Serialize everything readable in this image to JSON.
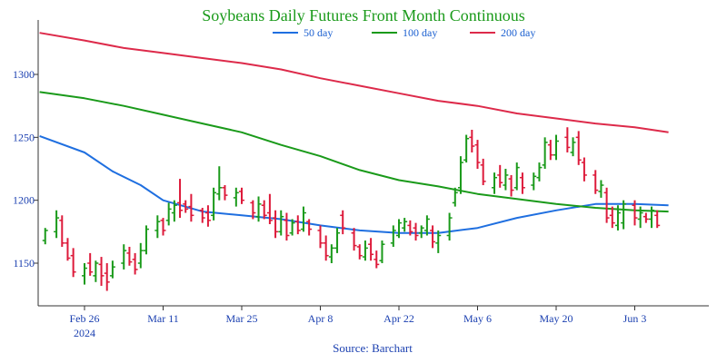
{
  "chart_data": {
    "type": "ohlc-bar",
    "title": "Soybeans Daily Futures Front Month Continuous",
    "source": "Source: Barchart",
    "year_label": "2024",
    "ylim": [
      1120,
      1345
    ],
    "yticks": [
      1150,
      1200,
      1250,
      1300
    ],
    "xticks": [
      {
        "label": "Feb 26",
        "day": 0
      },
      {
        "label": "Mar 11",
        "day": 14
      },
      {
        "label": "Mar 25",
        "day": 28
      },
      {
        "label": "Apr 8",
        "day": 42
      },
      {
        "label": "Apr 22",
        "day": 56
      },
      {
        "label": "May 6",
        "day": 70
      },
      {
        "label": "May 20",
        "day": 84
      },
      {
        "label": "Jun 3",
        "day": 98
      }
    ],
    "xlim": [
      -8,
      105
    ],
    "colors": {
      "up": "#1a9a1a",
      "down": "#dd1a3a",
      "ma50": "#1f6fe0",
      "ma100": "#1a9a1a",
      "ma200": "#dd2a4a"
    },
    "legend": [
      {
        "name": "50 day",
        "color": "#1f6fe0"
      },
      {
        "name": "100 day",
        "color": "#1a9a1a"
      },
      {
        "name": "200 day",
        "color": "#dd2a4a"
      }
    ],
    "bars": [
      {
        "day": -7,
        "high": 1178,
        "low": 1165,
        "open": 1168,
        "close": 1176,
        "dir": "up"
      },
      {
        "day": -5,
        "high": 1192,
        "low": 1170,
        "open": 1175,
        "close": 1186,
        "dir": "up"
      },
      {
        "day": -4,
        "high": 1188,
        "low": 1163,
        "open": 1184,
        "close": 1166,
        "dir": "down"
      },
      {
        "day": -3,
        "high": 1170,
        "low": 1152,
        "open": 1166,
        "close": 1154,
        "dir": "down"
      },
      {
        "day": -2,
        "high": 1162,
        "low": 1139,
        "open": 1156,
        "close": 1143,
        "dir": "down"
      },
      {
        "day": 0,
        "high": 1150,
        "low": 1133,
        "open": 1140,
        "close": 1146,
        "dir": "up"
      },
      {
        "day": 1,
        "high": 1158,
        "low": 1140,
        "open": 1150,
        "close": 1143,
        "dir": "down"
      },
      {
        "day": 2,
        "high": 1152,
        "low": 1135,
        "open": 1140,
        "close": 1150,
        "dir": "up"
      },
      {
        "day": 3,
        "high": 1155,
        "low": 1132,
        "open": 1149,
        "close": 1140,
        "dir": "down"
      },
      {
        "day": 4,
        "high": 1150,
        "low": 1128,
        "open": 1142,
        "close": 1135,
        "dir": "down"
      },
      {
        "day": 5,
        "high": 1152,
        "low": 1138,
        "open": 1140,
        "close": 1147,
        "dir": "up"
      },
      {
        "day": 7,
        "high": 1165,
        "low": 1145,
        "open": 1150,
        "close": 1160,
        "dir": "up"
      },
      {
        "day": 8,
        "high": 1163,
        "low": 1148,
        "open": 1158,
        "close": 1151,
        "dir": "down"
      },
      {
        "day": 9,
        "high": 1158,
        "low": 1141,
        "open": 1153,
        "close": 1145,
        "dir": "down"
      },
      {
        "day": 10,
        "high": 1166,
        "low": 1146,
        "open": 1150,
        "close": 1160,
        "dir": "up"
      },
      {
        "day": 11,
        "high": 1180,
        "low": 1157,
        "open": 1160,
        "close": 1177,
        "dir": "up"
      },
      {
        "day": 13,
        "high": 1188,
        "low": 1170,
        "open": 1176,
        "close": 1183,
        "dir": "up"
      },
      {
        "day": 14,
        "high": 1186,
        "low": 1172,
        "open": 1184,
        "close": 1176,
        "dir": "down"
      },
      {
        "day": 15,
        "high": 1198,
        "low": 1180,
        "open": 1184,
        "close": 1193,
        "dir": "up"
      },
      {
        "day": 16,
        "high": 1200,
        "low": 1183,
        "open": 1190,
        "close": 1196,
        "dir": "up"
      },
      {
        "day": 17,
        "high": 1217,
        "low": 1186,
        "open": 1198,
        "close": 1192,
        "dir": "down"
      },
      {
        "day": 18,
        "high": 1200,
        "low": 1190,
        "open": 1197,
        "close": 1193,
        "dir": "down"
      },
      {
        "day": 19,
        "high": 1205,
        "low": 1183,
        "open": 1195,
        "close": 1188,
        "dir": "down"
      },
      {
        "day": 21,
        "high": 1194,
        "low": 1182,
        "open": 1192,
        "close": 1186,
        "dir": "down"
      },
      {
        "day": 22,
        "high": 1196,
        "low": 1179,
        "open": 1190,
        "close": 1184,
        "dir": "down"
      },
      {
        "day": 23,
        "high": 1210,
        "low": 1184,
        "open": 1188,
        "close": 1206,
        "dir": "up"
      },
      {
        "day": 24,
        "high": 1227,
        "low": 1200,
        "open": 1205,
        "close": 1210,
        "dir": "up"
      },
      {
        "day": 25,
        "high": 1212,
        "low": 1200,
        "open": 1210,
        "close": 1204,
        "dir": "down"
      },
      {
        "day": 27,
        "high": 1210,
        "low": 1195,
        "open": 1202,
        "close": 1206,
        "dir": "up"
      },
      {
        "day": 28,
        "high": 1210,
        "low": 1197,
        "open": 1207,
        "close": 1200,
        "dir": "down"
      },
      {
        "day": 30,
        "high": 1200,
        "low": 1185,
        "open": 1198,
        "close": 1190,
        "dir": "down"
      },
      {
        "day": 31,
        "high": 1203,
        "low": 1183,
        "open": 1187,
        "close": 1197,
        "dir": "up"
      },
      {
        "day": 32,
        "high": 1200,
        "low": 1185,
        "open": 1196,
        "close": 1188,
        "dir": "down"
      },
      {
        "day": 33,
        "high": 1205,
        "low": 1181,
        "open": 1190,
        "close": 1184,
        "dir": "down"
      },
      {
        "day": 34,
        "high": 1192,
        "low": 1170,
        "open": 1186,
        "close": 1175,
        "dir": "down"
      },
      {
        "day": 35,
        "high": 1192,
        "low": 1172,
        "open": 1175,
        "close": 1187,
        "dir": "up"
      },
      {
        "day": 36,
        "high": 1190,
        "low": 1168,
        "open": 1184,
        "close": 1172,
        "dir": "down"
      },
      {
        "day": 37,
        "high": 1185,
        "low": 1172,
        "open": 1174,
        "close": 1182,
        "dir": "up"
      },
      {
        "day": 38,
        "high": 1188,
        "low": 1173,
        "open": 1183,
        "close": 1176,
        "dir": "down"
      },
      {
        "day": 39,
        "high": 1195,
        "low": 1175,
        "open": 1177,
        "close": 1190,
        "dir": "up"
      },
      {
        "day": 40,
        "high": 1185,
        "low": 1172,
        "open": 1183,
        "close": 1177,
        "dir": "down"
      },
      {
        "day": 42,
        "high": 1180,
        "low": 1162,
        "open": 1176,
        "close": 1166,
        "dir": "down"
      },
      {
        "day": 43,
        "high": 1172,
        "low": 1152,
        "open": 1166,
        "close": 1156,
        "dir": "down"
      },
      {
        "day": 44,
        "high": 1165,
        "low": 1150,
        "open": 1155,
        "close": 1162,
        "dir": "up"
      },
      {
        "day": 45,
        "high": 1178,
        "low": 1158,
        "open": 1162,
        "close": 1174,
        "dir": "up"
      },
      {
        "day": 46,
        "high": 1192,
        "low": 1173,
        "open": 1188,
        "close": 1178,
        "dir": "down"
      },
      {
        "day": 48,
        "high": 1178,
        "low": 1160,
        "open": 1174,
        "close": 1164,
        "dir": "down"
      },
      {
        "day": 49,
        "high": 1165,
        "low": 1153,
        "open": 1163,
        "close": 1156,
        "dir": "down"
      },
      {
        "day": 50,
        "high": 1168,
        "low": 1152,
        "open": 1155,
        "close": 1162,
        "dir": "up"
      },
      {
        "day": 51,
        "high": 1170,
        "low": 1152,
        "open": 1165,
        "close": 1157,
        "dir": "down"
      },
      {
        "day": 52,
        "high": 1160,
        "low": 1146,
        "open": 1153,
        "close": 1149,
        "dir": "down"
      },
      {
        "day": 53,
        "high": 1168,
        "low": 1150,
        "open": 1152,
        "close": 1165,
        "dir": "up"
      },
      {
        "day": 55,
        "high": 1180,
        "low": 1163,
        "open": 1166,
        "close": 1176,
        "dir": "up"
      },
      {
        "day": 56,
        "high": 1185,
        "low": 1170,
        "open": 1172,
        "close": 1182,
        "dir": "up"
      },
      {
        "day": 57,
        "high": 1186,
        "low": 1175,
        "open": 1178,
        "close": 1183,
        "dir": "up"
      },
      {
        "day": 58,
        "high": 1184,
        "low": 1172,
        "open": 1180,
        "close": 1175,
        "dir": "down"
      },
      {
        "day": 59,
        "high": 1182,
        "low": 1168,
        "open": 1178,
        "close": 1172,
        "dir": "down"
      },
      {
        "day": 60,
        "high": 1180,
        "low": 1170,
        "open": 1174,
        "close": 1178,
        "dir": "up"
      },
      {
        "day": 61,
        "high": 1188,
        "low": 1172,
        "open": 1176,
        "close": 1185,
        "dir": "up"
      },
      {
        "day": 62,
        "high": 1180,
        "low": 1162,
        "open": 1176,
        "close": 1167,
        "dir": "down"
      },
      {
        "day": 63,
        "high": 1176,
        "low": 1158,
        "open": 1166,
        "close": 1172,
        "dir": "up"
      },
      {
        "day": 65,
        "high": 1190,
        "low": 1168,
        "open": 1172,
        "close": 1186,
        "dir": "up"
      },
      {
        "day": 66,
        "high": 1210,
        "low": 1195,
        "open": 1198,
        "close": 1206,
        "dir": "up"
      },
      {
        "day": 67,
        "high": 1235,
        "low": 1205,
        "open": 1210,
        "close": 1230,
        "dir": "up"
      },
      {
        "day": 68,
        "high": 1252,
        "low": 1230,
        "open": 1232,
        "close": 1249,
        "dir": "up"
      },
      {
        "day": 69,
        "high": 1256,
        "low": 1238,
        "open": 1250,
        "close": 1243,
        "dir": "down"
      },
      {
        "day": 70,
        "high": 1248,
        "low": 1225,
        "open": 1244,
        "close": 1230,
        "dir": "down"
      },
      {
        "day": 71,
        "high": 1233,
        "low": 1212,
        "open": 1228,
        "close": 1215,
        "dir": "down"
      },
      {
        "day": 73,
        "high": 1222,
        "low": 1205,
        "open": 1210,
        "close": 1218,
        "dir": "up"
      },
      {
        "day": 74,
        "high": 1228,
        "low": 1210,
        "open": 1220,
        "close": 1214,
        "dir": "down"
      },
      {
        "day": 75,
        "high": 1225,
        "low": 1208,
        "open": 1212,
        "close": 1220,
        "dir": "up"
      },
      {
        "day": 76,
        "high": 1220,
        "low": 1203,
        "open": 1217,
        "close": 1208,
        "dir": "down"
      },
      {
        "day": 77,
        "high": 1230,
        "low": 1208,
        "open": 1210,
        "close": 1226,
        "dir": "up"
      },
      {
        "day": 78,
        "high": 1222,
        "low": 1205,
        "open": 1218,
        "close": 1210,
        "dir": "down"
      },
      {
        "day": 80,
        "high": 1222,
        "low": 1208,
        "open": 1212,
        "close": 1219,
        "dir": "up"
      },
      {
        "day": 81,
        "high": 1230,
        "low": 1215,
        "open": 1218,
        "close": 1226,
        "dir": "up"
      },
      {
        "day": 82,
        "high": 1250,
        "low": 1225,
        "open": 1228,
        "close": 1246,
        "dir": "up"
      },
      {
        "day": 83,
        "high": 1248,
        "low": 1232,
        "open": 1244,
        "close": 1236,
        "dir": "down"
      },
      {
        "day": 84,
        "high": 1252,
        "low": 1232,
        "open": 1236,
        "close": 1247,
        "dir": "up"
      },
      {
        "day": 86,
        "high": 1258,
        "low": 1238,
        "open": 1250,
        "close": 1242,
        "dir": "down"
      },
      {
        "day": 87,
        "high": 1250,
        "low": 1235,
        "open": 1238,
        "close": 1246,
        "dir": "up"
      },
      {
        "day": 88,
        "high": 1255,
        "low": 1228,
        "open": 1250,
        "close": 1232,
        "dir": "down"
      },
      {
        "day": 89,
        "high": 1234,
        "low": 1215,
        "open": 1230,
        "close": 1220,
        "dir": "down"
      },
      {
        "day": 91,
        "high": 1224,
        "low": 1205,
        "open": 1220,
        "close": 1208,
        "dir": "down"
      },
      {
        "day": 92,
        "high": 1216,
        "low": 1202,
        "open": 1207,
        "close": 1212,
        "dir": "up"
      },
      {
        "day": 93,
        "high": 1210,
        "low": 1182,
        "open": 1206,
        "close": 1186,
        "dir": "down"
      },
      {
        "day": 94,
        "high": 1195,
        "low": 1178,
        "open": 1188,
        "close": 1182,
        "dir": "down"
      },
      {
        "day": 95,
        "high": 1196,
        "low": 1176,
        "open": 1180,
        "close": 1190,
        "dir": "up"
      },
      {
        "day": 96,
        "high": 1200,
        "low": 1177,
        "open": 1182,
        "close": 1197,
        "dir": "up"
      },
      {
        "day": 98,
        "high": 1200,
        "low": 1180,
        "open": 1196,
        "close": 1186,
        "dir": "down"
      },
      {
        "day": 99,
        "high": 1195,
        "low": 1178,
        "open": 1185,
        "close": 1190,
        "dir": "up"
      },
      {
        "day": 100,
        "high": 1190,
        "low": 1182,
        "open": 1187,
        "close": 1185,
        "dir": "down"
      },
      {
        "day": 101,
        "high": 1195,
        "low": 1178,
        "open": 1185,
        "close": 1192,
        "dir": "up"
      },
      {
        "day": 102,
        "high": 1192,
        "low": 1178,
        "open": 1188,
        "close": 1180,
        "dir": "down"
      }
    ],
    "series": [
      {
        "name": "50 day",
        "color": "#1f6fe0",
        "points": [
          [
            -8,
            1251
          ],
          [
            0,
            1238
          ],
          [
            5,
            1223
          ],
          [
            10,
            1212
          ],
          [
            14,
            1200
          ],
          [
            21,
            1191
          ],
          [
            28,
            1188
          ],
          [
            35,
            1185
          ],
          [
            42,
            1180
          ],
          [
            49,
            1176
          ],
          [
            56,
            1174
          ],
          [
            63,
            1174
          ],
          [
            70,
            1178
          ],
          [
            77,
            1186
          ],
          [
            84,
            1192
          ],
          [
            91,
            1197
          ],
          [
            98,
            1197
          ],
          [
            104,
            1196
          ]
        ]
      },
      {
        "name": "100 day",
        "color": "#1a9a1a",
        "points": [
          [
            -8,
            1286
          ],
          [
            0,
            1281
          ],
          [
            7,
            1275
          ],
          [
            14,
            1268
          ],
          [
            21,
            1261
          ],
          [
            28,
            1254
          ],
          [
            35,
            1244
          ],
          [
            42,
            1235
          ],
          [
            49,
            1224
          ],
          [
            56,
            1216
          ],
          [
            63,
            1211
          ],
          [
            70,
            1205
          ],
          [
            77,
            1201
          ],
          [
            84,
            1197
          ],
          [
            91,
            1194
          ],
          [
            98,
            1192
          ],
          [
            104,
            1191
          ]
        ]
      },
      {
        "name": "200 day",
        "color": "#dd2a4a",
        "points": [
          [
            -8,
            1333
          ],
          [
            0,
            1327
          ],
          [
            7,
            1321
          ],
          [
            14,
            1317
          ],
          [
            21,
            1313
          ],
          [
            28,
            1309
          ],
          [
            35,
            1304
          ],
          [
            42,
            1297
          ],
          [
            49,
            1291
          ],
          [
            56,
            1285
          ],
          [
            63,
            1279
          ],
          [
            70,
            1275
          ],
          [
            77,
            1269
          ],
          [
            84,
            1265
          ],
          [
            91,
            1261
          ],
          [
            98,
            1258
          ],
          [
            104,
            1254
          ]
        ]
      }
    ]
  }
}
